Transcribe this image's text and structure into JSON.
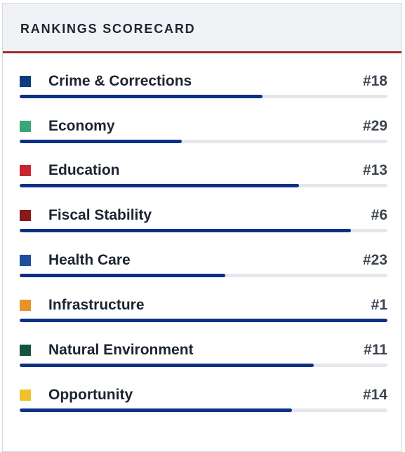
{
  "card": {
    "title": "RANKINGS SCORECARD",
    "accent_color": "#a02c2c",
    "bar_color": "#0d3285"
  },
  "rankings": [
    {
      "label": "Crime & Corrections",
      "rank": "#18",
      "color": "#0d3b7e",
      "score": 0.66
    },
    {
      "label": "Economy",
      "rank": "#29",
      "color": "#3aa57a",
      "score": 0.44
    },
    {
      "label": "Education",
      "rank": "#13",
      "color": "#c8252f",
      "score": 0.76
    },
    {
      "label": "Fiscal Stability",
      "rank": "#6",
      "color": "#851c1c",
      "score": 0.9
    },
    {
      "label": "Health Care",
      "rank": "#23",
      "color": "#1d4f9e",
      "score": 0.56
    },
    {
      "label": "Infrastructure",
      "rank": "#1",
      "color": "#e6932a",
      "score": 1.0
    },
    {
      "label": "Natural Environment",
      "rank": "#11",
      "color": "#13543a",
      "score": 0.8
    },
    {
      "label": "Opportunity",
      "rank": "#14",
      "color": "#f0c229",
      "score": 0.74
    }
  ]
}
